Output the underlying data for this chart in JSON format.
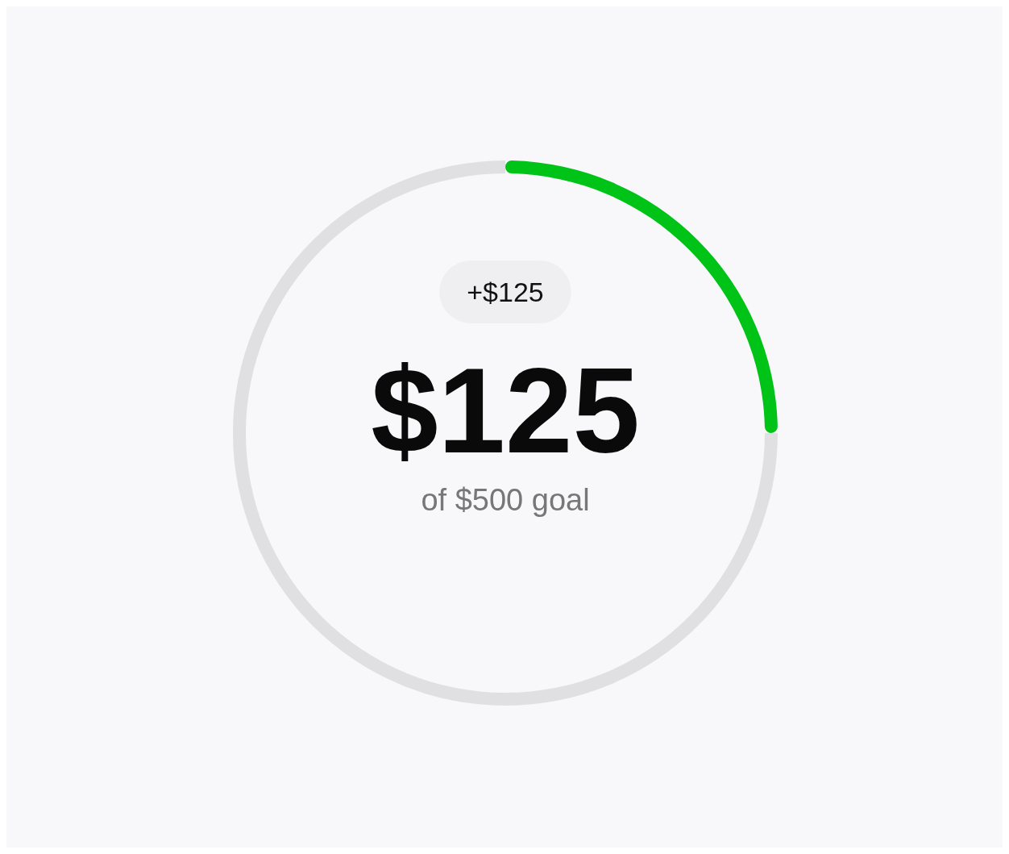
{
  "chart_data": {
    "type": "donut",
    "categories": [
      null,
      null
    ],
    "values": [
      25,
      75
    ],
    "colors": [
      "#00c318",
      "#e0dfe2"
    ],
    "annotations": [
      "+$125",
      "$125",
      "of $500 goal"
    ]
  }
}
